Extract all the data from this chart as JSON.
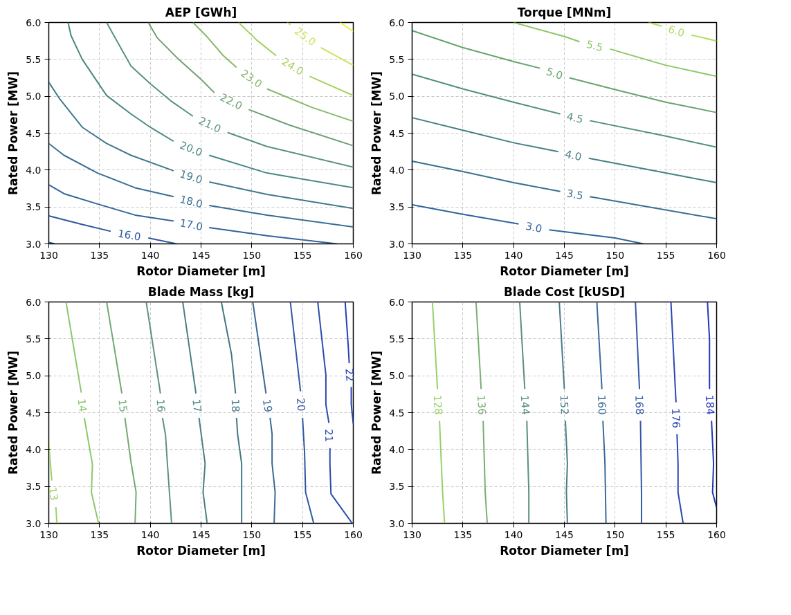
{
  "chart_data": [
    {
      "type": "line",
      "title": "AEP [GWh]",
      "xlabel": "Rotor Diameter [m]",
      "ylabel": "Rated Power [MW]",
      "xlim": [
        130,
        160
      ],
      "ylim": [
        3,
        6
      ],
      "xticks": [
        130,
        135,
        140,
        145,
        150,
        155,
        160
      ],
      "yticks": [
        {
          "value": 3,
          "label": "3.0"
        },
        {
          "value": 3.5,
          "label": "3.5"
        },
        {
          "value": 4,
          "label": "4.0"
        },
        {
          "value": 4.5,
          "label": "4.5"
        },
        {
          "value": 5,
          "label": "5.0"
        },
        {
          "value": 5.5,
          "label": "5.5"
        },
        {
          "value": 6,
          "label": "6.0"
        }
      ],
      "grid": true,
      "series": [
        {
          "color": "#26489e",
          "x": [
            130,
            130.6
          ],
          "values": [
            3.02,
            3.0
          ]
        },
        {
          "name": "16.0",
          "color": "#2d58a0",
          "x": [
            130,
            133.1,
            136.1,
            null,
            139.8,
            142.6
          ],
          "values": [
            3.38,
            3.27,
            3.17,
            null,
            3.08,
            3.0
          ]
        },
        {
          "name": "17.0",
          "color": "#32649c",
          "x": [
            130,
            131.5,
            134.8,
            138.5,
            142.3,
            null,
            145.8,
            151.5,
            158.4
          ],
          "values": [
            3.8,
            3.68,
            3.54,
            3.39,
            3.31,
            null,
            3.22,
            3.11,
            3.0
          ]
        },
        {
          "name": "18.0",
          "color": "#386e94",
          "x": [
            130,
            131.5,
            134.8,
            138.5,
            142.3,
            null,
            145.8,
            151.5,
            160
          ],
          "values": [
            4.36,
            4.2,
            3.96,
            3.76,
            3.64,
            null,
            3.52,
            3.39,
            3.23
          ]
        },
        {
          "name": "19.0",
          "color": "#3f7a8c",
          "x": [
            130,
            131.1,
            133.3,
            135.7,
            138.1,
            142.3,
            null,
            145.8,
            151.5,
            160
          ],
          "values": [
            5.19,
            4.96,
            4.58,
            4.36,
            4.2,
            3.99,
            null,
            3.84,
            3.67,
            3.48
          ]
        },
        {
          "name": "20.0",
          "color": "#4a8882",
          "x": [
            131.9,
            132.2,
            133.3,
            135.7,
            138.1,
            140.0,
            142.3,
            null,
            145.8,
            151.5,
            160
          ],
          "values": [
            6.0,
            5.82,
            5.5,
            5.01,
            4.76,
            4.58,
            4.39,
            null,
            4.2,
            3.96,
            3.76
          ]
        },
        {
          "name": "21.0",
          "color": "#5a937a",
          "x": [
            135.7,
            136.3,
            138.1,
            140.0,
            142.0,
            144.2,
            null,
            147.6,
            151.5,
            160
          ],
          "values": [
            6.0,
            5.85,
            5.41,
            5.17,
            4.94,
            4.73,
            null,
            4.51,
            4.32,
            4.04
          ]
        },
        {
          "name": "22.0",
          "color": "#6e9f74",
          "x": [
            139.8,
            140.7,
            142.8,
            145.0,
            146.3,
            null,
            149.7,
            153.7,
            160
          ],
          "values": [
            6.0,
            5.79,
            5.5,
            5.23,
            5.05,
            null,
            4.82,
            4.61,
            4.33
          ]
        },
        {
          "name": "23.0",
          "color": "#88b86c",
          "x": [
            144.2,
            145.5,
            147.2,
            148.5,
            null,
            151.5,
            155.9,
            160
          ],
          "values": [
            6.0,
            5.82,
            5.55,
            5.39,
            null,
            5.1,
            4.85,
            4.66
          ]
        },
        {
          "name": "24.0",
          "color": "#a6d060",
          "x": [
            148.7,
            150.5,
            152.4,
            null,
            155.7,
            160
          ],
          "values": [
            6.0,
            5.76,
            5.55,
            null,
            5.27,
            5.01
          ]
        },
        {
          "name": "25.0",
          "color": "#c8e45a",
          "x": [
            153.5,
            153.8,
            null,
            156.8,
            160
          ],
          "values": [
            6.0,
            5.97,
            null,
            5.66,
            5.42
          ]
        },
        {
          "color": "#eef050",
          "x": [
            158.7,
            160
          ],
          "values": [
            6.0,
            5.88
          ]
        }
      ]
    },
    {
      "type": "line",
      "title": "Torque [MNm]",
      "xlabel": "Rotor Diameter [m]",
      "ylabel": "Rated Power [MW]",
      "xlim": [
        130,
        160
      ],
      "ylim": [
        3,
        6
      ],
      "xticks": [
        130,
        135,
        140,
        145,
        150,
        155,
        160
      ],
      "yticks": [
        {
          "value": 3,
          "label": "3.0"
        },
        {
          "value": 3.5,
          "label": "3.5"
        },
        {
          "value": 4,
          "label": "4.0"
        },
        {
          "value": 4.5,
          "label": "4.5"
        },
        {
          "value": 5,
          "label": "5.0"
        },
        {
          "value": 5.5,
          "label": "5.5"
        },
        {
          "value": 6,
          "label": "6.0"
        }
      ],
      "grid": true,
      "series": [
        {
          "name": "3.0",
          "color": "#30649c",
          "x": [
            130,
            135.0,
            140.5,
            null,
            143.5,
            150.0,
            152.8
          ],
          "values": [
            3.53,
            3.4,
            3.27,
            null,
            3.19,
            3.08,
            3.0
          ]
        },
        {
          "name": "3.5",
          "color": "#3a7090",
          "x": [
            130,
            135.0,
            140.0,
            144.6,
            null,
            147.5,
            155.0,
            160
          ],
          "values": [
            4.12,
            3.98,
            3.83,
            3.71,
            null,
            3.64,
            3.46,
            3.34
          ]
        },
        {
          "name": "4.0",
          "color": "#458086",
          "x": [
            130,
            135.0,
            140.0,
            144.4,
            null,
            147.4,
            155.0,
            160
          ],
          "values": [
            4.71,
            4.54,
            4.37,
            4.25,
            null,
            4.16,
            3.96,
            3.83
          ]
        },
        {
          "name": "4.5",
          "color": "#52907c",
          "x": [
            130,
            135.0,
            140.0,
            144.6,
            null,
            147.5,
            155.0,
            160
          ],
          "values": [
            5.3,
            5.1,
            4.92,
            4.76,
            null,
            4.67,
            4.46,
            4.31
          ]
        },
        {
          "name": "5.0",
          "color": "#66a46e",
          "x": [
            130,
            135.0,
            140.0,
            142.6,
            null,
            145.5,
            150.0,
            155.0,
            160
          ],
          "values": [
            5.89,
            5.66,
            5.47,
            5.38,
            null,
            5.25,
            5.09,
            4.92,
            4.78
          ]
        },
        {
          "name": "5.5",
          "color": "#8cc664",
          "x": [
            140.0,
            145.0,
            146.5,
            null,
            149.5,
            155.0,
            160
          ],
          "values": [
            6.0,
            5.81,
            5.74,
            null,
            5.64,
            5.42,
            5.27
          ]
        },
        {
          "name": "6.0",
          "color": "#aedc62",
          "x": [
            153.3,
            154.6,
            null,
            157.5,
            160
          ],
          "values": [
            6.0,
            5.95,
            null,
            5.83,
            5.75
          ]
        }
      ]
    },
    {
      "type": "line",
      "title": "Blade Mass [kg]",
      "xlabel": "Rotor Diameter [m]",
      "ylabel": "Rated Power [MW]",
      "xlim": [
        130,
        160
      ],
      "ylim": [
        3,
        6
      ],
      "xticks": [
        130,
        135,
        140,
        145,
        150,
        155,
        160
      ],
      "yticks": [
        {
          "value": 3,
          "label": "3.0"
        },
        {
          "value": 3.5,
          "label": "3.5"
        },
        {
          "value": 4,
          "label": "4.0"
        },
        {
          "value": 4.5,
          "label": "4.5"
        },
        {
          "value": 5,
          "label": "5.0"
        },
        {
          "value": 5.5,
          "label": "5.5"
        },
        {
          "value": 6,
          "label": "6.0"
        }
      ],
      "grid": true,
      "series": [
        {
          "name": "13",
          "color": "#9cd26a",
          "x": [
            130,
            130.3,
            null,
            130.7,
            130.8
          ],
          "values": [
            4.08,
            3.58,
            null,
            3.22,
            3.0
          ]
        },
        {
          "name": "14",
          "color": "#8cc86a",
          "x": [
            131.7,
            133.2,
            null,
            133.5,
            134.3,
            134.2,
            134.9
          ],
          "values": [
            6.0,
            4.77,
            null,
            4.43,
            3.8,
            3.42,
            3.0
          ]
        },
        {
          "name": "15",
          "color": "#72aa72",
          "x": [
            135.7,
            137.2,
            null,
            137.5,
            138.1,
            138.6,
            138.5
          ],
          "values": [
            6.0,
            4.76,
            null,
            4.43,
            3.83,
            3.42,
            3.0
          ]
        },
        {
          "name": "16",
          "color": "#5c9478",
          "x": [
            139.6,
            141.0,
            null,
            141.2,
            141.5,
            141.7,
            142.1
          ],
          "values": [
            6.0,
            4.76,
            null,
            4.43,
            4.2,
            3.78,
            3.0
          ]
        },
        {
          "name": "17",
          "color": "#4a8080",
          "x": [
            143.2,
            144.5,
            null,
            144.8,
            145.4,
            145.2,
            145.6
          ],
          "values": [
            6.0,
            4.76,
            null,
            4.43,
            3.81,
            3.42,
            3.0
          ]
        },
        {
          "name": "18",
          "color": "#437684",
          "x": [
            147.0,
            148.0,
            148.4,
            null,
            148.5,
            148.6,
            149.0,
            149.0
          ],
          "values": [
            6.0,
            5.29,
            4.76,
            null,
            4.43,
            4.21,
            3.81,
            3.0
          ]
        },
        {
          "name": "19",
          "color": "#3a6894",
          "x": [
            150.1,
            151.4,
            null,
            151.8,
            152.0,
            152.0,
            152.3,
            152.2
          ],
          "values": [
            6.0,
            4.76,
            null,
            4.43,
            4.21,
            3.81,
            3.42,
            3.0
          ]
        },
        {
          "name": "20",
          "color": "#2f58a2",
          "x": [
            153.8,
            154.8,
            null,
            155.0,
            155.2,
            155.3,
            156.1
          ],
          "values": [
            6.0,
            4.79,
            null,
            4.43,
            3.96,
            3.42,
            3.0
          ]
        },
        {
          "name": "21",
          "color": "#2a4cac",
          "x": [
            156.5,
            157.3,
            157.3,
            157.6,
            null,
            157.7,
            157.7,
            157.8,
            159.9
          ],
          "values": [
            6.0,
            5.01,
            4.61,
            4.36,
            null,
            4.02,
            3.8,
            3.4,
            3.0
          ]
        },
        {
          "name": "22",
          "color": "#2440b4",
          "x": [
            159.2,
            159.5,
            159.6,
            null,
            159.8,
            159.8,
            160
          ],
          "values": [
            6.0,
            5.41,
            5.17,
            null,
            4.85,
            4.61,
            4.35
          ]
        }
      ]
    },
    {
      "type": "line",
      "title": "Blade Cost [kUSD]",
      "xlabel": "Rotor Diameter [m]",
      "ylabel": "Rated Power [MW]",
      "xlim": [
        130,
        160
      ],
      "ylim": [
        3,
        6
      ],
      "xticks": [
        130,
        135,
        140,
        145,
        150,
        155,
        160
      ],
      "yticks": [
        {
          "value": 3,
          "label": "3.0"
        },
        {
          "value": 3.5,
          "label": "3.5"
        },
        {
          "value": 4,
          "label": "4.0"
        },
        {
          "value": 4.5,
          "label": "4.5"
        },
        {
          "value": 5,
          "label": "5.0"
        },
        {
          "value": 5.5,
          "label": "5.5"
        },
        {
          "value": 6,
          "label": "6.0"
        }
      ],
      "grid": true,
      "series": [
        {
          "name": "128",
          "color": "#98d06a",
          "x": [
            132.0,
            132.5,
            null,
            132.7,
            133.0,
            133.2
          ],
          "values": [
            6.0,
            4.82,
            null,
            4.39,
            3.43,
            3.0
          ]
        },
        {
          "name": "136",
          "color": "#78b070",
          "x": [
            136.3,
            136.8,
            null,
            137.0,
            137.2,
            137.4
          ],
          "values": [
            6.0,
            4.82,
            null,
            4.39,
            3.43,
            3.0
          ]
        },
        {
          "name": "144",
          "color": "#5a9078",
          "x": [
            140.6,
            141.1,
            null,
            141.3,
            141.5,
            141.5
          ],
          "values": [
            6.0,
            4.82,
            null,
            4.39,
            3.43,
            3.0
          ]
        },
        {
          "name": "152",
          "color": "#467c88",
          "x": [
            144.5,
            145.0,
            null,
            145.1,
            145.3,
            145.2,
            145.3
          ],
          "values": [
            6.0,
            4.82,
            null,
            4.39,
            3.81,
            3.43,
            3.0
          ]
        },
        {
          "name": "160",
          "color": "#3a6a9a",
          "x": [
            148.2,
            148.7,
            null,
            148.8,
            149.0,
            149.1
          ],
          "values": [
            6.0,
            4.82,
            null,
            4.39,
            3.81,
            3.0
          ]
        },
        {
          "name": "168",
          "color": "#3258a8",
          "x": [
            152.0,
            152.4,
            null,
            152.5,
            152.6,
            152.6
          ],
          "values": [
            6.0,
            4.82,
            null,
            4.39,
            3.43,
            3.0
          ]
        },
        {
          "name": "176",
          "color": "#2a46b2",
          "x": [
            155.5,
            156.0,
            null,
            156.1,
            156.2,
            156.2,
            156.7
          ],
          "values": [
            6.0,
            4.64,
            null,
            4.21,
            3.81,
            3.42,
            3.0
          ]
        },
        {
          "name": "184",
          "color": "#2236ba",
          "x": [
            159.1,
            159.3,
            159.3,
            null,
            159.5,
            159.7,
            159.6,
            160
          ],
          "values": [
            6.0,
            5.5,
            4.82,
            null,
            4.39,
            3.81,
            3.42,
            3.21
          ]
        }
      ]
    }
  ]
}
